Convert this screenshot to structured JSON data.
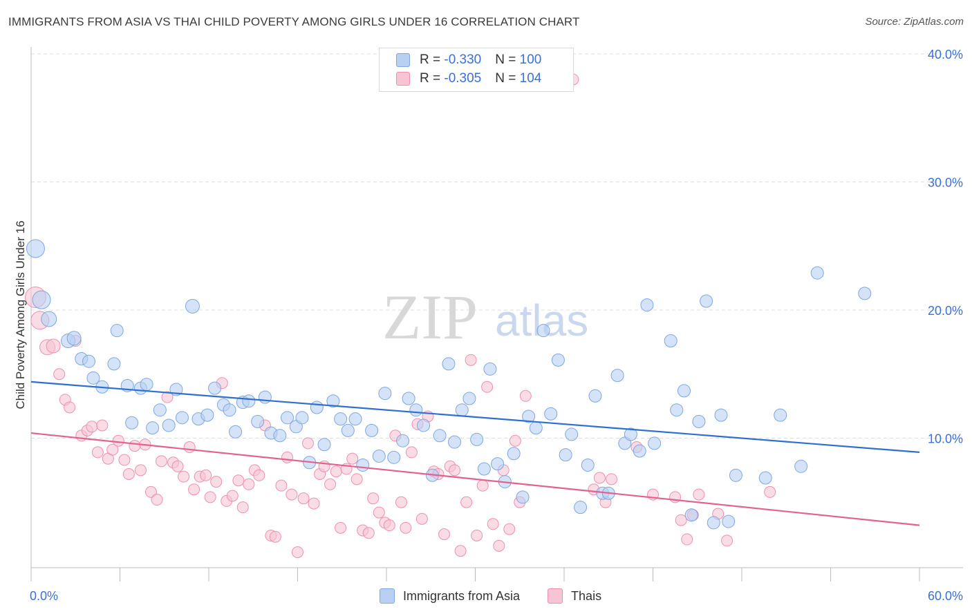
{
  "title": "IMMIGRANTS FROM ASIA VS THAI CHILD POVERTY AMONG GIRLS UNDER 16 CORRELATION CHART",
  "source": "Source: ZipAtlas.com",
  "watermark": {
    "zip": "ZIP",
    "atlas": "atlas"
  },
  "legend": {
    "rows": [
      {
        "r_label": "R = ",
        "r_value": "-0.330",
        "n_label": "N = ",
        "n_value": "100"
      },
      {
        "r_label": "R = ",
        "r_value": "-0.305",
        "n_label": "N = ",
        "n_value": "104"
      }
    ]
  },
  "colors": {
    "blue_fill": "#b8d0f3",
    "blue_stroke": "#7ea6e0",
    "blue_line": "#2f6fce",
    "pink_fill": "#f7c4d4",
    "pink_stroke": "#ee8fb0",
    "pink_line": "#e2628f",
    "tick_label": "#3a6fd8",
    "grid": "#dddddd"
  },
  "chart_data": {
    "type": "scatter",
    "title": "IMMIGRANTS FROM ASIA VS THAI CHILD POVERTY AMONG GIRLS UNDER 16 CORRELATION CHART",
    "xlabel": "",
    "ylabel": "Child Poverty Among Girls Under 16",
    "xlim": [
      0,
      60
    ],
    "ylim": [
      0,
      40
    ],
    "x_tick_labels": [
      "0.0%",
      "60.0%"
    ],
    "y_ticks": [
      10,
      20,
      30,
      40
    ],
    "y_tick_labels": [
      "10.0%",
      "20.0%",
      "30.0%",
      "40.0%"
    ],
    "grid": true,
    "legend_position": "top-center",
    "series": [
      {
        "name": "Immigrants from Asia",
        "color": "#b8d0f3",
        "trend": {
          "x0": 0,
          "y0": 14.4,
          "x1": 60,
          "y1": 8.9
        },
        "points": [
          [
            0.3,
            24.8,
            1.3
          ],
          [
            0.7,
            20.8,
            1.3
          ],
          [
            1.2,
            19.3,
            1.1
          ],
          [
            2.5,
            17.6,
            1.0
          ],
          [
            2.9,
            17.8,
            1.0
          ],
          [
            3.4,
            16.2,
            0.9
          ],
          [
            3.9,
            16.0,
            0.9
          ],
          [
            4.2,
            14.7,
            0.9
          ],
          [
            4.8,
            14.0,
            0.9
          ],
          [
            5.6,
            15.8,
            0.9
          ],
          [
            5.8,
            18.4,
            0.9
          ],
          [
            6.5,
            14.1,
            0.9
          ],
          [
            6.8,
            11.2,
            0.9
          ],
          [
            7.4,
            13.9,
            0.9
          ],
          [
            7.8,
            14.2,
            0.9
          ],
          [
            8.2,
            10.8,
            0.9
          ],
          [
            8.7,
            12.2,
            0.9
          ],
          [
            9.3,
            11.0,
            0.9
          ],
          [
            9.8,
            13.8,
            0.9
          ],
          [
            10.2,
            11.6,
            0.9
          ],
          [
            10.9,
            20.3,
            1.0
          ],
          [
            11.3,
            11.5,
            0.9
          ],
          [
            11.9,
            11.8,
            0.9
          ],
          [
            12.4,
            13.9,
            0.9
          ],
          [
            13.0,
            12.6,
            0.9
          ],
          [
            13.4,
            12.2,
            0.9
          ],
          [
            13.8,
            10.5,
            0.9
          ],
          [
            14.3,
            12.8,
            0.9
          ],
          [
            14.7,
            12.9,
            0.9
          ],
          [
            15.3,
            11.3,
            0.9
          ],
          [
            15.8,
            13.2,
            0.9
          ],
          [
            16.2,
            10.4,
            0.9
          ],
          [
            16.8,
            10.2,
            0.9
          ],
          [
            17.3,
            11.6,
            0.9
          ],
          [
            17.9,
            10.9,
            0.9
          ],
          [
            18.3,
            11.6,
            0.9
          ],
          [
            18.8,
            8.1,
            0.9
          ],
          [
            19.3,
            12.4,
            0.9
          ],
          [
            19.8,
            9.5,
            0.9
          ],
          [
            20.4,
            12.9,
            0.9
          ],
          [
            20.9,
            11.5,
            0.9
          ],
          [
            21.4,
            10.6,
            0.9
          ],
          [
            21.9,
            11.5,
            0.9
          ],
          [
            22.4,
            7.9,
            0.9
          ],
          [
            23.0,
            10.6,
            0.9
          ],
          [
            23.5,
            8.6,
            0.9
          ],
          [
            23.9,
            13.5,
            0.9
          ],
          [
            24.5,
            8.5,
            0.9
          ],
          [
            25.1,
            9.8,
            0.9
          ],
          [
            25.5,
            13.1,
            0.9
          ],
          [
            26.0,
            12.2,
            0.9
          ],
          [
            26.5,
            11.0,
            0.9
          ],
          [
            27.1,
            7.1,
            0.9
          ],
          [
            27.6,
            10.2,
            0.9
          ],
          [
            28.2,
            15.8,
            0.9
          ],
          [
            28.6,
            9.7,
            0.9
          ],
          [
            29.1,
            12.2,
            0.9
          ],
          [
            29.6,
            13.1,
            0.9
          ],
          [
            30.1,
            9.9,
            0.9
          ],
          [
            30.6,
            7.6,
            0.9
          ],
          [
            31.0,
            15.4,
            0.9
          ],
          [
            31.5,
            8.0,
            0.9
          ],
          [
            32.0,
            6.6,
            0.9
          ],
          [
            32.6,
            8.8,
            0.9
          ],
          [
            33.2,
            5.4,
            0.9
          ],
          [
            33.6,
            11.7,
            0.9
          ],
          [
            34.1,
            10.8,
            0.9
          ],
          [
            34.6,
            18.4,
            0.9
          ],
          [
            35.1,
            11.9,
            0.9
          ],
          [
            35.6,
            16.1,
            0.9
          ],
          [
            36.1,
            8.7,
            0.9
          ],
          [
            36.5,
            10.3,
            0.9
          ],
          [
            37.1,
            4.6,
            0.9
          ],
          [
            37.6,
            7.9,
            0.9
          ],
          [
            38.1,
            13.3,
            0.9
          ],
          [
            38.6,
            5.7,
            0.9
          ],
          [
            39.0,
            5.7,
            0.9
          ],
          [
            39.6,
            14.9,
            0.9
          ],
          [
            40.1,
            9.6,
            0.9
          ],
          [
            40.5,
            10.3,
            0.9
          ],
          [
            41.1,
            9.0,
            0.9
          ],
          [
            41.6,
            20.4,
            0.9
          ],
          [
            42.1,
            9.6,
            0.9
          ],
          [
            43.2,
            17.6,
            0.9
          ],
          [
            43.6,
            12.2,
            0.9
          ],
          [
            44.1,
            13.7,
            0.9
          ],
          [
            44.6,
            4.0,
            0.9
          ],
          [
            45.1,
            11.3,
            0.9
          ],
          [
            45.6,
            20.7,
            0.9
          ],
          [
            46.1,
            3.4,
            0.9
          ],
          [
            46.6,
            11.8,
            0.9
          ],
          [
            47.1,
            3.5,
            0.9
          ],
          [
            47.6,
            7.1,
            0.9
          ],
          [
            49.6,
            6.9,
            0.9
          ],
          [
            50.6,
            11.8,
            0.9
          ],
          [
            52.0,
            7.8,
            0.9
          ],
          [
            53.1,
            22.9,
            0.9
          ],
          [
            56.3,
            21.3,
            0.9
          ]
        ]
      },
      {
        "name": "Thais",
        "color": "#f7c4d4",
        "trend": {
          "x0": 0,
          "y0": 10.4,
          "x1": 60,
          "y1": 3.2
        },
        "points": [
          [
            0.3,
            21.0,
            1.5
          ],
          [
            0.6,
            19.2,
            1.3
          ],
          [
            1.1,
            17.1,
            1.1
          ],
          [
            1.5,
            17.2,
            1.0
          ],
          [
            1.9,
            15.0,
            0.8
          ],
          [
            2.3,
            13.0,
            0.8
          ],
          [
            2.6,
            12.4,
            0.8
          ],
          [
            3.0,
            17.6,
            0.8
          ],
          [
            3.4,
            10.2,
            0.8
          ],
          [
            3.8,
            10.6,
            0.8
          ],
          [
            4.1,
            10.9,
            0.8
          ],
          [
            4.5,
            8.9,
            0.8
          ],
          [
            4.8,
            11.0,
            0.8
          ],
          [
            5.2,
            8.4,
            0.8
          ],
          [
            5.5,
            9.1,
            0.8
          ],
          [
            5.9,
            9.8,
            0.8
          ],
          [
            6.3,
            8.3,
            0.8
          ],
          [
            6.6,
            7.2,
            0.8
          ],
          [
            7.0,
            9.4,
            0.8
          ],
          [
            7.4,
            7.5,
            0.8
          ],
          [
            7.7,
            9.5,
            0.8
          ],
          [
            8.1,
            5.8,
            0.8
          ],
          [
            8.5,
            5.2,
            0.8
          ],
          [
            8.8,
            8.2,
            0.8
          ],
          [
            9.2,
            13.2,
            0.8
          ],
          [
            9.6,
            8.1,
            0.8
          ],
          [
            9.9,
            7.8,
            0.8
          ],
          [
            10.3,
            7.0,
            0.8
          ],
          [
            10.7,
            9.3,
            0.8
          ],
          [
            11.0,
            6.0,
            0.8
          ],
          [
            11.4,
            7.0,
            0.8
          ],
          [
            11.8,
            7.1,
            0.8
          ],
          [
            12.1,
            5.4,
            0.8
          ],
          [
            12.5,
            6.6,
            0.8
          ],
          [
            12.9,
            14.3,
            0.8
          ],
          [
            13.2,
            5.1,
            0.8
          ],
          [
            13.6,
            5.5,
            0.8
          ],
          [
            14.0,
            6.7,
            0.8
          ],
          [
            14.3,
            4.6,
            0.8
          ],
          [
            14.7,
            6.4,
            0.8
          ],
          [
            15.1,
            7.5,
            0.8
          ],
          [
            15.4,
            7.1,
            0.8
          ],
          [
            15.8,
            11.0,
            0.8
          ],
          [
            16.2,
            2.4,
            0.8
          ],
          [
            16.5,
            2.3,
            0.8
          ],
          [
            16.9,
            6.3,
            0.8
          ],
          [
            17.3,
            8.5,
            0.8
          ],
          [
            17.6,
            5.6,
            0.8
          ],
          [
            18.0,
            1.1,
            0.8
          ],
          [
            18.4,
            5.3,
            0.8
          ],
          [
            18.7,
            9.6,
            0.8
          ],
          [
            19.1,
            4.9,
            0.8
          ],
          [
            19.5,
            7.2,
            0.8
          ],
          [
            19.8,
            7.8,
            0.8
          ],
          [
            20.2,
            6.4,
            0.8
          ],
          [
            20.6,
            7.4,
            0.8
          ],
          [
            20.9,
            3.0,
            0.8
          ],
          [
            21.3,
            7.6,
            0.8
          ],
          [
            21.7,
            8.4,
            0.8
          ],
          [
            22.0,
            6.8,
            0.8
          ],
          [
            22.4,
            2.8,
            0.8
          ],
          [
            22.8,
            2.6,
            0.8
          ],
          [
            23.1,
            5.3,
            0.8
          ],
          [
            23.5,
            4.2,
            0.8
          ],
          [
            23.9,
            3.4,
            0.8
          ],
          [
            24.2,
            3.2,
            0.8
          ],
          [
            24.6,
            10.2,
            0.8
          ],
          [
            25.0,
            5.0,
            0.8
          ],
          [
            25.3,
            3.0,
            0.8
          ],
          [
            25.7,
            8.9,
            0.8
          ],
          [
            26.1,
            11.1,
            0.8
          ],
          [
            26.4,
            3.7,
            0.8
          ],
          [
            26.8,
            11.7,
            0.8
          ],
          [
            27.2,
            7.4,
            0.8
          ],
          [
            27.5,
            7.2,
            0.8
          ],
          [
            27.9,
            2.5,
            0.8
          ],
          [
            28.3,
            7.8,
            0.8
          ],
          [
            28.6,
            7.5,
            0.8
          ],
          [
            29.0,
            1.2,
            0.8
          ],
          [
            29.4,
            5.0,
            0.8
          ],
          [
            29.7,
            16.1,
            0.8
          ],
          [
            30.1,
            2.4,
            0.8
          ],
          [
            30.5,
            6.3,
            0.8
          ],
          [
            30.8,
            14.0,
            0.8
          ],
          [
            31.2,
            3.3,
            0.8
          ],
          [
            31.6,
            1.6,
            0.8
          ],
          [
            31.9,
            7.5,
            0.8
          ],
          [
            32.3,
            2.9,
            0.8
          ],
          [
            32.7,
            9.8,
            0.8
          ],
          [
            33.0,
            5.0,
            0.8
          ],
          [
            33.4,
            13.3,
            0.8
          ],
          [
            36.6,
            38.0,
            0.8
          ],
          [
            38.0,
            6.0,
            0.8
          ],
          [
            38.4,
            6.9,
            0.8
          ],
          [
            38.8,
            5.0,
            0.8
          ],
          [
            39.2,
            6.8,
            0.8
          ],
          [
            40.9,
            9.3,
            0.8
          ],
          [
            42.0,
            5.6,
            0.8
          ],
          [
            43.5,
            5.4,
            0.8
          ],
          [
            43.9,
            3.6,
            0.8
          ],
          [
            44.3,
            2.1,
            0.8
          ],
          [
            44.7,
            4.0,
            0.8
          ],
          [
            45.1,
            5.6,
            0.8
          ],
          [
            46.4,
            4.1,
            0.8
          ],
          [
            47.0,
            2.0,
            0.8
          ],
          [
            49.9,
            5.8,
            0.8
          ]
        ]
      }
    ]
  },
  "bottom_legend": [
    "Immigrants from Asia",
    "Thais"
  ]
}
